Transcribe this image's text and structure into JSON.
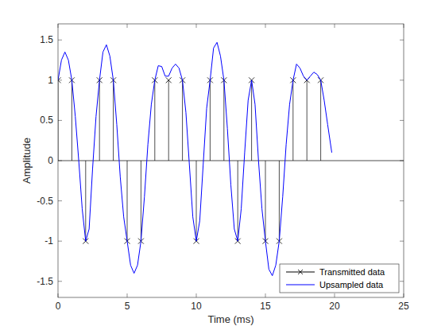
{
  "chart_data": {
    "type": "stem",
    "x_label": "Time (ms)",
    "y_label": "Amplitude",
    "xlim": [
      0,
      25
    ],
    "xticks": [
      0,
      5,
      10,
      15,
      20,
      25
    ],
    "ylim": [
      -1.7,
      1.7
    ],
    "yticks": [
      -1.5,
      -1,
      -0.5,
      0,
      0.5,
      1,
      1.5
    ],
    "legend": "bottom-right",
    "grid": false,
    "series": [
      {
        "name": "Transmitted data",
        "type": "stem",
        "color": "#000000",
        "marker": "x",
        "x": [
          0,
          1,
          2,
          3,
          4,
          5,
          6,
          7,
          8,
          9,
          10,
          11,
          12,
          13,
          14,
          15,
          16,
          17,
          18,
          19
        ],
        "values": [
          1,
          1,
          -1,
          1,
          1,
          -1,
          -1,
          1,
          1,
          1,
          -1,
          1,
          1,
          -1,
          1,
          -1,
          -1,
          1,
          1,
          1
        ]
      },
      {
        "name": "Upsampled data",
        "type": "line",
        "color": "#0000ff",
        "line_style": "solid",
        "x": [
          0,
          0.25,
          0.5,
          0.75,
          1,
          1.25,
          1.5,
          1.75,
          2,
          2.25,
          2.5,
          2.75,
          3,
          3.25,
          3.5,
          3.75,
          4,
          4.25,
          4.5,
          4.75,
          5,
          5.25,
          5.5,
          5.75,
          6,
          6.25,
          6.5,
          6.75,
          7,
          7.25,
          7.5,
          7.75,
          8,
          8.25,
          8.5,
          8.75,
          9,
          9.25,
          9.5,
          9.75,
          10,
          10.25,
          10.5,
          10.75,
          11,
          11.25,
          11.5,
          11.75,
          12,
          12.25,
          12.5,
          12.75,
          13,
          13.25,
          13.5,
          13.75,
          14,
          14.25,
          14.5,
          14.75,
          15,
          15.25,
          15.5,
          15.75,
          16,
          16.25,
          16.5,
          16.75,
          17,
          17.25,
          17.5,
          17.75,
          18,
          18.25,
          18.5,
          18.75,
          19,
          19.25,
          19.5,
          19.8
        ],
        "values": [
          1.0,
          1.25,
          1.35,
          1.25,
          1.0,
          0.55,
          0.0,
          -0.6,
          -1.0,
          -0.85,
          -0.1,
          0.55,
          1.0,
          1.35,
          1.44,
          1.3,
          1.0,
          0.45,
          -0.2,
          -0.7,
          -1.0,
          -1.3,
          -1.4,
          -1.3,
          -1.0,
          -0.45,
          0.2,
          0.7,
          1.0,
          1.18,
          1.17,
          1.05,
          1.05,
          1.15,
          1.2,
          1.15,
          1.0,
          0.6,
          -0.05,
          -0.7,
          -1.0,
          -0.75,
          -0.05,
          0.65,
          1.0,
          1.4,
          1.47,
          1.3,
          1.0,
          0.4,
          -0.3,
          -0.85,
          -1.0,
          -0.6,
          0.1,
          0.75,
          1.0,
          0.7,
          0.0,
          -0.6,
          -1.0,
          -1.35,
          -1.43,
          -1.3,
          -1.0,
          -0.45,
          0.2,
          0.7,
          1.0,
          1.2,
          1.15,
          1.05,
          1.0,
          1.05,
          1.1,
          1.07,
          1.0,
          0.75,
          0.45,
          0.1
        ]
      }
    ]
  }
}
